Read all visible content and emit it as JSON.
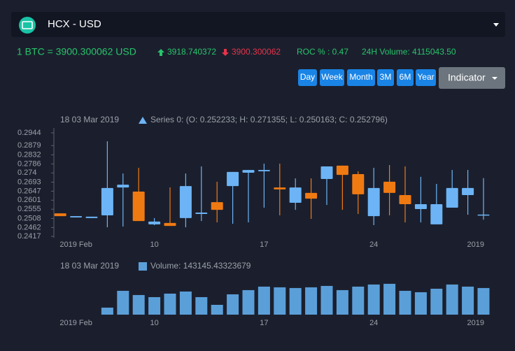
{
  "header": {
    "title": "HCX - USD"
  },
  "ticker": {
    "rate": "1 BTC = 3900.300062 USD",
    "high": "3918.740372",
    "low": "3900.300062",
    "roc": "ROC % : 0.47",
    "volume": "24H Volume: 4115043.50"
  },
  "buttons": [
    "Day",
    "Week",
    "Month",
    "3M",
    "6M",
    "Year"
  ],
  "indicator": "Indicator",
  "chart_data": [
    {
      "type": "candlestick",
      "date_label": "18 03 Mar 2019",
      "series_label": "Series 0: (O: 0.252233; H: 0.271355; L: 0.250163; C: 0.252796)",
      "categories": [
        "2019-02-04",
        "2019-02-05",
        "2019-02-06",
        "2019-02-07",
        "2019-02-08",
        "2019-02-09",
        "2019-02-10",
        "2019-02-11",
        "2019-02-12",
        "2019-02-13",
        "2019-02-14",
        "2019-02-15",
        "2019-02-16",
        "2019-02-17",
        "2019-02-18",
        "2019-02-19",
        "2019-02-20",
        "2019-02-21",
        "2019-02-22",
        "2019-02-23",
        "2019-02-24",
        "2019-02-25",
        "2019-02-26",
        "2019-02-27",
        "2019-02-28",
        "2019-03-01",
        "2019-03-02",
        "2019-03-03"
      ],
      "open": [
        0.2534,
        0.2513,
        0.251,
        0.2524,
        0.2666,
        0.2645,
        0.2478,
        0.2485,
        0.251,
        0.2531,
        0.2591,
        0.2673,
        0.2741,
        0.2748,
        0.2666,
        0.2588,
        0.2638,
        0.2709,
        0.2777,
        0.2734,
        0.252,
        0.2695,
        0.2627,
        0.2556,
        0.2478,
        0.2563,
        0.2627,
        0.252233
      ],
      "high": [
        0.2534,
        0.252,
        0.2517,
        0.2901,
        0.2737,
        0.2766,
        0.251,
        0.2666,
        0.2737,
        0.2773,
        0.2695,
        0.2745,
        0.2755,
        0.2787,
        0.2787,
        0.2712,
        0.2712,
        0.2773,
        0.2777,
        0.2748,
        0.2766,
        0.278,
        0.2773,
        0.272,
        0.2684,
        0.2755,
        0.2755,
        0.271355
      ],
      "low": [
        0.252,
        0.2513,
        0.251,
        0.2463,
        0.2467,
        0.2495,
        0.2474,
        0.247,
        0.2463,
        0.2495,
        0.2488,
        0.2481,
        0.2488,
        0.2563,
        0.2524,
        0.2552,
        0.2506,
        0.2577,
        0.2552,
        0.2531,
        0.2474,
        0.2524,
        0.2488,
        0.2488,
        0.2478,
        0.2563,
        0.2527,
        0.250163
      ],
      "close": [
        0.252,
        0.252,
        0.2517,
        0.2663,
        0.268,
        0.2495,
        0.2492,
        0.247,
        0.2673,
        0.2538,
        0.2552,
        0.2745,
        0.2755,
        0.2755,
        0.2656,
        0.2666,
        0.2609,
        0.2773,
        0.273,
        0.2631,
        0.2663,
        0.2638,
        0.2581,
        0.2581,
        0.2581,
        0.2663,
        0.2663,
        0.252796
      ],
      "up_color": "#6cb4f5",
      "down_color": "#f07a12",
      "ylim": [
        0.2417,
        0.2944
      ],
      "yticks": [
        0.2944,
        0.2879,
        0.2832,
        0.2786,
        0.274,
        0.2693,
        0.2647,
        0.2601,
        0.2555,
        0.2508,
        0.2462,
        0.2417
      ],
      "xticks": [
        {
          "value": "2019-02-05",
          "label": "2019 Feb"
        },
        {
          "value": "2019-02-10",
          "label": "10"
        },
        {
          "value": "2019-02-17",
          "label": "17"
        },
        {
          "value": "2019-02-24",
          "label": "24"
        },
        {
          "value": "2019-03-03",
          "label": "2019"
        }
      ]
    },
    {
      "type": "bar",
      "date_label": "18 03 Mar 2019",
      "series_label": "Volume: 143145.43323679",
      "categories": [
        "2019-02-04",
        "2019-02-05",
        "2019-02-06",
        "2019-02-07",
        "2019-02-08",
        "2019-02-09",
        "2019-02-10",
        "2019-02-11",
        "2019-02-12",
        "2019-02-13",
        "2019-02-14",
        "2019-02-15",
        "2019-02-16",
        "2019-02-17",
        "2019-02-18",
        "2019-02-19",
        "2019-02-20",
        "2019-02-21",
        "2019-02-22",
        "2019-02-23",
        "2019-02-24",
        "2019-02-25",
        "2019-02-26",
        "2019-02-27",
        "2019-02-28",
        "2019-03-01",
        "2019-03-02",
        "2019-03-03"
      ],
      "values": [
        null,
        null,
        null,
        37670,
        128078,
        105476,
        94175,
        113010,
        124311,
        94175,
        52738,
        109243,
        131845,
        150680,
        146913,
        143146,
        146913,
        154447,
        131845,
        150680,
        161981,
        165748,
        128078,
        120544,
        139379,
        161981,
        150680,
        143145.43323679
      ],
      "color": "#5b9fd9",
      "ylim": [
        0,
        188000
      ],
      "xticks": [
        {
          "value": "2019-02-05",
          "label": "2019 Feb"
        },
        {
          "value": "2019-02-10",
          "label": "10"
        },
        {
          "value": "2019-02-17",
          "label": "17"
        },
        {
          "value": "2019-02-24",
          "label": "24"
        },
        {
          "value": "2019-03-03",
          "label": "2019"
        }
      ]
    }
  ]
}
